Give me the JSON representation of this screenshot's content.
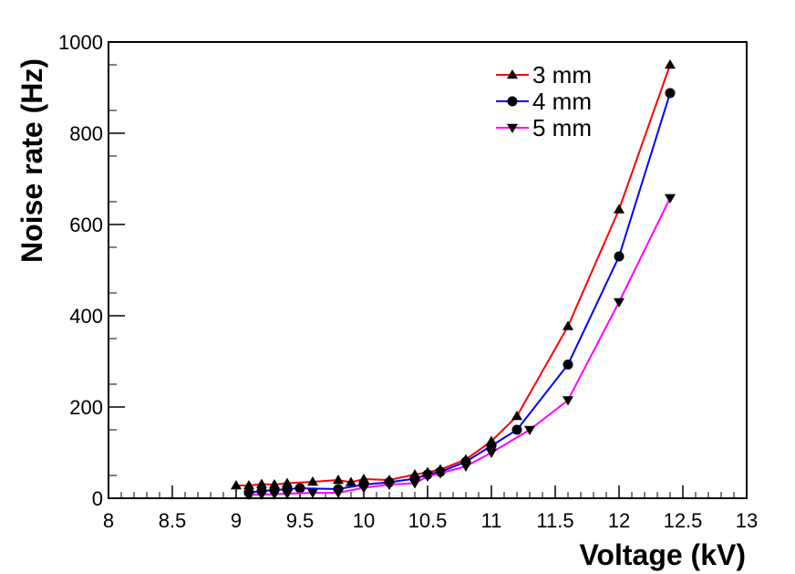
{
  "chart_data": {
    "type": "line",
    "xlabel": "Voltage (kV)",
    "ylabel": "Noise rate (Hz)",
    "xlim": [
      8,
      13
    ],
    "ylim": [
      0,
      1000
    ],
    "x_ticks": [
      "8",
      "8.5",
      "9",
      "9.5",
      "10",
      "10.5",
      "11",
      "11.5",
      "12",
      "12.5",
      "13"
    ],
    "y_ticks": [
      "0",
      "200",
      "400",
      "600",
      "800",
      "1000"
    ],
    "legend_position": "top-right",
    "series": [
      {
        "name": "3 mm",
        "color": "#ff0000",
        "marker": "triangle-up",
        "x": [
          9.0,
          9.1,
          9.2,
          9.3,
          9.4,
          9.6,
          9.8,
          9.9,
          10.0,
          10.2,
          10.4,
          10.5,
          10.6,
          10.8,
          11.0,
          11.2,
          11.6,
          12.0,
          12.4
        ],
        "y": [
          28,
          28,
          31,
          30,
          33,
          36,
          40,
          35,
          42,
          40,
          52,
          57,
          63,
          85,
          125,
          180,
          377,
          633,
          950
        ]
      },
      {
        "name": "4 mm",
        "color": "#0000ff",
        "marker": "circle",
        "x": [
          9.1,
          9.2,
          9.3,
          9.4,
          9.5,
          9.8,
          10.0,
          10.2,
          10.4,
          10.5,
          10.6,
          10.8,
          11.0,
          11.2,
          11.6,
          12.0,
          12.4
        ],
        "y": [
          12,
          16,
          18,
          20,
          22,
          20,
          30,
          35,
          43,
          52,
          58,
          80,
          115,
          150,
          293,
          530,
          888
        ]
      },
      {
        "name": "5 mm",
        "color": "#ff00ff",
        "marker": "triangle-down",
        "x": [
          9.1,
          9.2,
          9.3,
          9.4,
          9.6,
          9.8,
          10.0,
          10.2,
          10.4,
          10.5,
          10.6,
          10.8,
          11.0,
          11.3,
          11.6,
          12.0,
          12.4
        ],
        "y": [
          8,
          8,
          9,
          10,
          12,
          12,
          23,
          30,
          33,
          48,
          55,
          70,
          100,
          150,
          215,
          430,
          658
        ]
      }
    ]
  }
}
